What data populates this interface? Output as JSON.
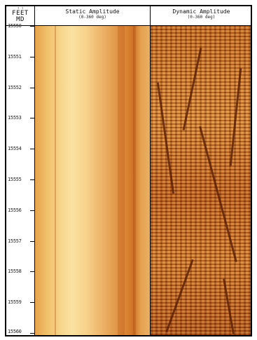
{
  "depth_track": {
    "unit_top": "↑ ↑",
    "unit": "FEET",
    "reference": "MD",
    "labels": [
      "15550",
      "15551",
      "15552",
      "15553",
      "15554",
      "15555",
      "15556",
      "15557",
      "15558",
      "15559",
      "15560"
    ]
  },
  "tracks": {
    "static": {
      "title": "Static Amplitude",
      "unit": "(0-360 deg)"
    },
    "dynamic": {
      "title": "Dynamic Amplitude",
      "unit": "(0-360 deg)"
    }
  },
  "colors": {
    "frame": "#000000",
    "static_light": "#fbe2a2",
    "static_dark": "#cf7326",
    "dynamic_dark": "#5a1e05",
    "dynamic_mid": "#c0641e"
  }
}
